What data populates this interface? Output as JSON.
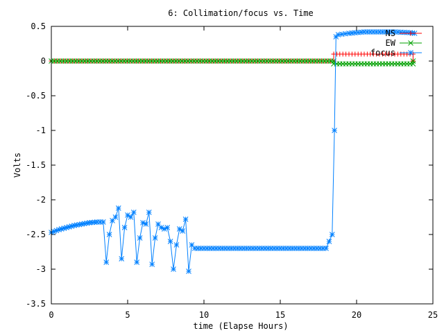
{
  "chart_data": {
    "type": "line",
    "title": "6: Collimation/focus vs. Time",
    "xlabel": "time (Elapse Hours)",
    "ylabel": "Volts",
    "xlim": [
      0,
      25
    ],
    "ylim": [
      -3.5,
      0.5
    ],
    "xticks": [
      "0",
      "5",
      "10",
      "15",
      "20",
      "25"
    ],
    "xtick_values": [
      0,
      5,
      10,
      15,
      20,
      25
    ],
    "yticks": [
      "0.5",
      "0",
      "-0.5",
      "-1",
      "-1.5",
      "-2",
      "-2.5",
      "-3",
      "-3.5"
    ],
    "ytick_values": [
      0.5,
      0,
      -0.5,
      -1,
      -1.5,
      -2,
      -2.5,
      -3,
      -3.5
    ],
    "grid": false,
    "legend_position": "top-right",
    "series": [
      {
        "name": "NS",
        "color": "#ff0000",
        "marker": "plus",
        "x": [
          0,
          18.5,
          18.5,
          23.7,
          23.7
        ],
        "y": [
          0.0,
          0.0,
          0.1,
          0.1,
          0.0
        ]
      },
      {
        "name": "EW",
        "color": "#00a000",
        "marker": "cross",
        "x": [
          0,
          18.5,
          18.5,
          23.7,
          23.7
        ],
        "y": [
          0.0,
          0.0,
          -0.04,
          -0.04,
          0.0
        ]
      },
      {
        "name": "focus",
        "color": "#0080ff",
        "marker": "star",
        "x": [
          0.0,
          0.5,
          1.0,
          1.5,
          2.0,
          2.5,
          3.0,
          3.4,
          3.6,
          3.8,
          4.0,
          4.2,
          4.4,
          4.6,
          4.8,
          5.0,
          5.2,
          5.4,
          5.6,
          5.8,
          6.0,
          6.2,
          6.4,
          6.6,
          6.8,
          7.0,
          7.2,
          7.4,
          7.6,
          7.8,
          8.0,
          8.2,
          8.4,
          8.6,
          8.8,
          9.0,
          9.2,
          9.4,
          10.0,
          11.0,
          12.0,
          13.0,
          14.0,
          15.0,
          16.0,
          17.0,
          18.0,
          18.4,
          18.55,
          18.65,
          18.8,
          19.5,
          20.5,
          21.5,
          22.5,
          23.5,
          23.8
        ],
        "y": [
          -2.47,
          -2.43,
          -2.4,
          -2.37,
          -2.35,
          -2.33,
          -2.32,
          -2.32,
          -2.9,
          -2.5,
          -2.3,
          -2.25,
          -2.12,
          -2.85,
          -2.4,
          -2.22,
          -2.25,
          -2.18,
          -2.9,
          -2.55,
          -2.33,
          -2.35,
          -2.18,
          -2.93,
          -2.55,
          -2.35,
          -2.4,
          -2.42,
          -2.4,
          -2.6,
          -3.0,
          -2.65,
          -2.42,
          -2.45,
          -2.28,
          -3.03,
          -2.65,
          -2.7,
          -2.7,
          -2.7,
          -2.7,
          -2.7,
          -2.7,
          -2.7,
          -2.7,
          -2.7,
          -2.7,
          -2.5,
          -1.0,
          0.35,
          0.38,
          0.4,
          0.42,
          0.42,
          0.42,
          0.41,
          0.4
        ]
      }
    ]
  }
}
